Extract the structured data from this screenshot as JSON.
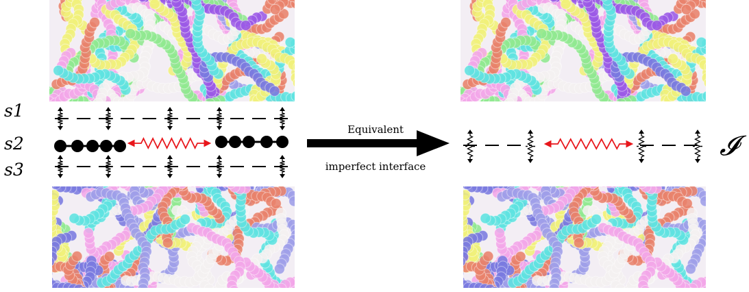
{
  "left": {
    "layer_labels": [
      "s1",
      "s2",
      "s3"
    ]
  },
  "arrow": {
    "label_top": "Equivalent",
    "label_bottom": "imperfect interface"
  },
  "right": {
    "interface_symbol": "𝓘"
  },
  "colors": {
    "bead": "#000000",
    "spring_red": "#e8161b",
    "dash": "#000000",
    "palette": [
      "#9b59e6",
      "#5fe3e0",
      "#e8826b",
      "#f0f07a",
      "#9e9ee8",
      "#f2a6e8",
      "#8fe88f",
      "#f4f0f0",
      "#7a7adf"
    ]
  },
  "icons": [
    "vertical-spring-icon",
    "horizontal-spring-icon",
    "bead-chain-icon",
    "right-arrow-icon"
  ]
}
